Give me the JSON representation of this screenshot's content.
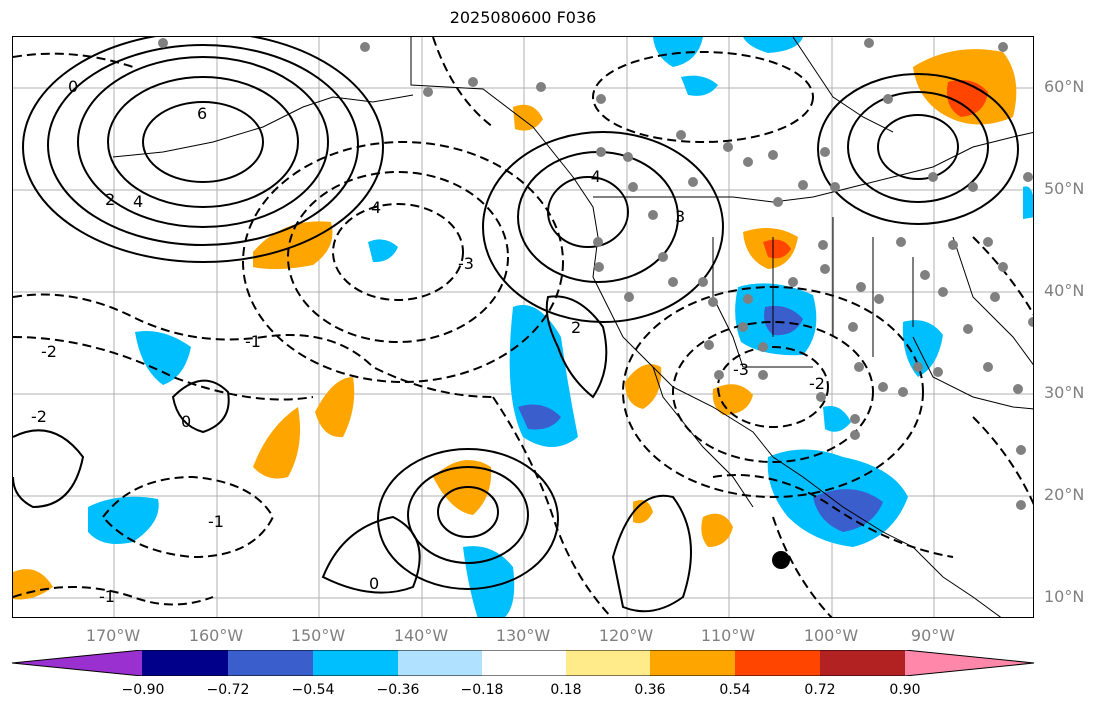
{
  "title": "2025080600 F036",
  "lat_labels": [
    "60°N",
    "50°N",
    "40°N",
    "30°N",
    "20°N",
    "10°N"
  ],
  "lon_labels": [
    "170°W",
    "160°W",
    "150°W",
    "140°W",
    "130°W",
    "120°W",
    "110°W",
    "100°W",
    "90°W"
  ],
  "contour_labels": [
    "6",
    "4",
    "2",
    "0",
    "-1",
    "-2",
    "-3",
    "4",
    "-4",
    "3",
    "2",
    "0",
    "-1",
    "-2",
    "-3",
    "0",
    "-1",
    "-2"
  ],
  "colorbar": {
    "ticks": [
      "−0.90",
      "−0.72",
      "−0.54",
      "−0.36",
      "−0.18",
      "0.18",
      "0.36",
      "0.54",
      "0.72",
      "0.90"
    ],
    "colors": [
      "#9b30d0",
      "#00008b",
      "#3a5fcd",
      "#00bfff",
      "#b0e2ff",
      "#ffffff",
      "#ffeb8a",
      "#ffa500",
      "#ff4500",
      "#b22222",
      "#ff88aa"
    ]
  }
}
